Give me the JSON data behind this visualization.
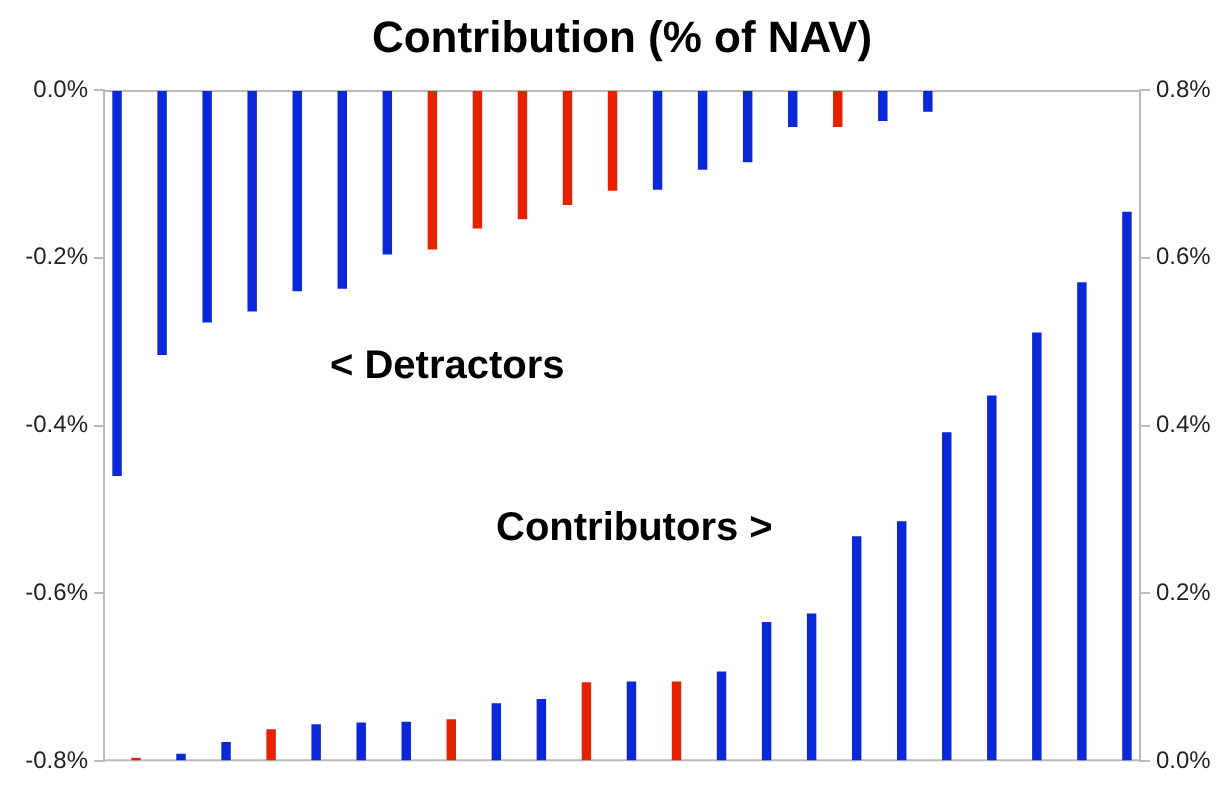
{
  "chart_data": {
    "type": "bar",
    "title": "Contribution (% of NAV)",
    "categories": [
      null,
      null,
      null,
      null,
      null,
      null,
      null,
      null,
      null,
      null,
      null,
      null,
      null,
      null,
      null,
      null,
      null,
      null,
      null,
      null,
      null,
      null,
      null
    ],
    "series": [
      {
        "colors": [
          "#0a28d8",
          "#0a28d8",
          "#0a28d8",
          "#0a28d8",
          "#0a28d8",
          "#0a28d8",
          "#0a28d8",
          "#e42200",
          "#e42200",
          "#e42200",
          "#e42200",
          "#e42200",
          "#0a28d8",
          "#0a28d8",
          "#0a28d8",
          "#0a28d8",
          "#e42200",
          "#0a28d8",
          "#0a28d8",
          null,
          null,
          null,
          null
        ],
        "values": [
          -0.46,
          -0.316,
          -0.277,
          -0.264,
          -0.24,
          -0.237,
          -0.196,
          -0.19,
          -0.165,
          -0.154,
          -0.137,
          -0.12,
          -0.119,
          -0.095,
          -0.086,
          -0.044,
          -0.044,
          -0.037,
          -0.026,
          null,
          null,
          null,
          null
        ]
      },
      {
        "axis": "y2",
        "colors": [
          "#e42200",
          "#0a28d8",
          "#0a28d8",
          "#e42200",
          "#0a28d8",
          "#0a28d8",
          "#0a28d8",
          "#e42200",
          "#0a28d8",
          "#0a28d8",
          "#e42200",
          "#0a28d8",
          "#e42200",
          "#0a28d8",
          "#0a28d8",
          "#0a28d8",
          "#0a28d8",
          "#0a28d8",
          "#0a28d8",
          "#0a28d8",
          "#0a28d8",
          "#0a28d8",
          "#0a28d8"
        ],
        "values": [
          0.004,
          0.009,
          0.023,
          0.038,
          0.044,
          0.046,
          0.047,
          0.05,
          0.069,
          0.074,
          0.094,
          0.095,
          0.095,
          0.107,
          0.166,
          0.176,
          0.268,
          0.286,
          0.392,
          0.436,
          0.511,
          0.571,
          0.655
        ]
      }
    ],
    "ylim": [
      -0.8,
      0
    ],
    "yticks": [
      {
        "value": -0.8,
        "label": "-0.8%"
      },
      {
        "value": -0.6,
        "label": "-0.6%"
      },
      {
        "value": -0.4,
        "label": "-0.4%"
      },
      {
        "value": -0.2,
        "label": "-0.2%"
      },
      {
        "value": 0,
        "label": "0.0%"
      }
    ],
    "y2lim": [
      0,
      0.8
    ],
    "y2ticks": [
      {
        "value": 0,
        "label": "0.0%"
      },
      {
        "value": 0.2,
        "label": "0.2%"
      },
      {
        "value": 0.4,
        "label": "0.4%"
      },
      {
        "value": 0.6,
        "label": "0.6%"
      },
      {
        "value": 0.8,
        "label": "0.8%"
      }
    ],
    "annotations": [
      "< Detractors",
      "Contributors >"
    ],
    "grid": false,
    "legend": false
  }
}
